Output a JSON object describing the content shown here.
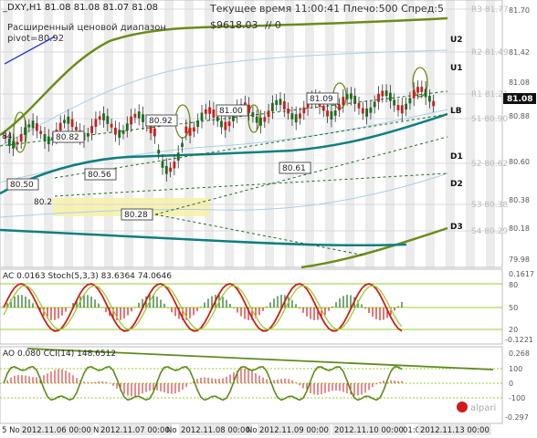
{
  "header": {
    "symbol_ohlc": "_DXY,H1  81.08 81.08 81.07 81.08",
    "server_time": "Текущее время 11:00:41 Плечо:500 Спред:5",
    "balance": "$9618.03",
    "counter": "// 0",
    "indicator_caption": "Расширенный ценовой диапазон",
    "pivot": "pivot=80.92"
  },
  "levels": {
    "U2": "U2",
    "U1": "U1",
    "LB": "LB",
    "D1": "D1",
    "D2": "D2",
    "D3": "D3",
    "R3": "R3 81.77",
    "R2": "R2 81.49",
    "R1": "R1 81.21",
    "S1": "S1 80.90",
    "S2": "S2 80.62",
    "S3": "S3 80.38",
    "S4": "S4 80.29"
  },
  "price_scale": [
    "81.70",
    "81.42",
    "81.08",
    "80.88",
    "80.60",
    "80.38",
    "80.18",
    "79.98"
  ],
  "current_price": "81.08",
  "annotations": [
    "80.82",
    "80.56",
    "80.50",
    "80.92",
    "81.00",
    "81.09",
    "80.61",
    "80.28",
    "80.2",
    "84"
  ],
  "ac_panel": {
    "title": "AC 0.0163  Stoch(5,3,3) 83.6364 74.0646",
    "scale": [
      "0.1617",
      "80",
      "50",
      "20",
      "-0.1221"
    ]
  },
  "cci_panel": {
    "title": "AO 0.080  CCI(14) 148.6512",
    "scale": [
      "0.268",
      "100",
      "0",
      "-100",
      "-0.297"
    ],
    "watermark": "alpari"
  },
  "time_axis": [
    "2012.11.06 00:00",
    "2012.11.07 00:00",
    "2012.11.08 00:00",
    "2012.11.09 00:00",
    "2012.11.10 00:00",
    "2012.11.13 00:00"
  ],
  "time_axis_fragments": [
    "5 No",
    "No",
    "No",
    "No",
    "01:00"
  ],
  "colors": {
    "background": "#ffffff",
    "vertical_bands": "#ececec",
    "candle_up": "#1e6b22",
    "candle_down": "#d11b1b",
    "bollinger": "#6b8c1a",
    "ma_teal": "#0f7f7f",
    "highlight_box": "#f7f0a8",
    "grid_text": "#9a9a9a",
    "stoch_main": "#d11b1b",
    "stoch_signal": "#9acd32",
    "cci_line": "#5f8b1f",
    "ao_bars": "#d11b1b"
  }
}
